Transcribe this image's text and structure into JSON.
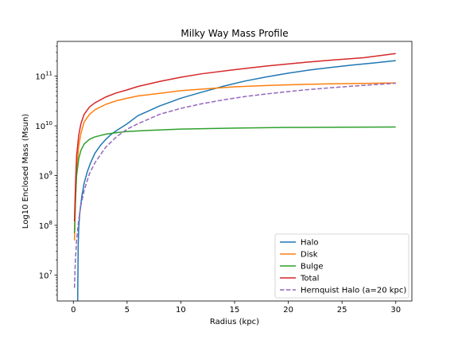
{
  "chart_data": {
    "type": "line",
    "title": "Milky Way Mass Profile",
    "xlabel": "Radius (kpc)",
    "ylabel": "Log10 Enclosed Mass (Msun)",
    "xlim": [
      -1.5,
      31.5
    ],
    "ylim": [
      3000000,
      500000000000
    ],
    "yscale": "log",
    "grid": false,
    "legend_position": "lower-right",
    "x_ticks": [
      0,
      5,
      10,
      15,
      20,
      25,
      30
    ],
    "x_tick_labels": [
      "0",
      "5",
      "10",
      "15",
      "20",
      "25",
      "30"
    ],
    "y_ticks": [
      10000000,
      100000000,
      1000000000,
      10000000000,
      100000000000
    ],
    "y_tick_labels": [
      {
        "base": "10",
        "exp": "7"
      },
      {
        "base": "10",
        "exp": "8"
      },
      {
        "base": "10",
        "exp": "9"
      },
      {
        "base": "10",
        "exp": "10"
      },
      {
        "base": "10",
        "exp": "11"
      }
    ],
    "series": [
      {
        "name": "Halo",
        "color": "#1f77b4",
        "dash": "solid",
        "x": [
          0.4,
          0.45,
          0.5,
          0.6,
          0.8,
          1.0,
          1.3,
          1.6,
          2.0,
          2.5,
          3.0,
          3.5,
          4.0,
          5.0,
          6.0,
          7.0,
          8.0,
          9.0,
          10.0,
          12.0,
          14.0,
          16.0,
          18.0,
          20.0,
          22.0,
          24.0,
          26.0,
          28.0,
          30.0
        ],
        "y": [
          3000000,
          40000000,
          90000000,
          180000000,
          400000000,
          700000000,
          1200000000,
          1800000000,
          2800000000,
          4000000000,
          5300000000,
          6700000000,
          8000000000,
          11000000000,
          16000000000,
          20000000000,
          25000000000,
          30000000000,
          36000000000,
          48000000000,
          63000000000,
          80000000000,
          97000000000,
          115000000000,
          133000000000,
          150000000000,
          168000000000,
          185000000000,
          205000000000
        ]
      },
      {
        "name": "Disk",
        "color": "#ff7f0e",
        "dash": "solid",
        "x": [
          0.1,
          0.2,
          0.3,
          0.5,
          0.7,
          1.0,
          1.5,
          2.0,
          3.0,
          4.0,
          5.0,
          6.0,
          8.0,
          10.0,
          12.0,
          15.0,
          18.0,
          21.0,
          24.0,
          27.0,
          30.0
        ],
        "y": [
          50000000,
          300000000,
          1200000000,
          4000000000,
          7000000000,
          12000000000,
          17000000000,
          21000000000,
          27000000000,
          32000000000,
          36000000000,
          40000000000,
          45000000000,
          51000000000,
          55000000000,
          61000000000,
          65000000000,
          68000000000,
          70000000000,
          71500000000,
          73000000000
        ]
      },
      {
        "name": "Bulge",
        "color": "#2ca02c",
        "dash": "solid",
        "x": [
          0.1,
          0.2,
          0.3,
          0.5,
          0.7,
          1.0,
          1.5,
          2.0,
          3.0,
          4.0,
          5.0,
          7.0,
          10.0,
          15.0,
          20.0,
          25.0,
          30.0
        ],
        "y": [
          70000000,
          350000000,
          1000000000,
          2200000000,
          3200000000,
          4300000000,
          5400000000,
          6000000000,
          6800000000,
          7300000000,
          7700000000,
          8100000000,
          8600000000,
          9000000000,
          9300000000,
          9400000000,
          9500000000
        ]
      },
      {
        "name": "Total",
        "color": "#d62728",
        "dash": "solid",
        "x": [
          0.1,
          0.2,
          0.3,
          0.5,
          0.7,
          1.0,
          1.5,
          2.0,
          3.0,
          4.0,
          5.0,
          6.0,
          8.0,
          10.0,
          12.0,
          15.0,
          18.0,
          21.0,
          24.0,
          27.0,
          30.0
        ],
        "y": [
          120000000,
          700000000,
          2500000000,
          6500000000,
          11000000000,
          17000000000,
          24000000000,
          29000000000,
          38000000000,
          46000000000,
          53000000000,
          62000000000,
          78000000000,
          95000000000,
          112000000000,
          135000000000,
          160000000000,
          185000000000,
          210000000000,
          235000000000,
          285000000000
        ]
      },
      {
        "name": "Hernquist Halo (a=20 kpc)",
        "color": "#9467bd",
        "dash": "dashed",
        "x": [
          0.1,
          0.15,
          0.2,
          0.3,
          0.5,
          0.7,
          1.0,
          1.5,
          2.0,
          3.0,
          4.0,
          5.0,
          6.0,
          8.0,
          10.0,
          12.0,
          14.0,
          16.0,
          18.0,
          20.0,
          22.0,
          24.0,
          26.0,
          28.0,
          30.0
        ],
        "y": [
          5500000,
          12000000,
          22000000,
          50000000,
          130000000,
          250000000,
          500000000,
          1100000000,
          1800000000,
          3700000000,
          6000000000,
          8600000000,
          11000000000,
          17000000000,
          22500000000,
          28000000000,
          33500000000,
          39000000000,
          44000000000,
          49000000000,
          54000000000,
          58500000000,
          63000000000,
          67500000000,
          72000000000
        ]
      }
    ]
  }
}
